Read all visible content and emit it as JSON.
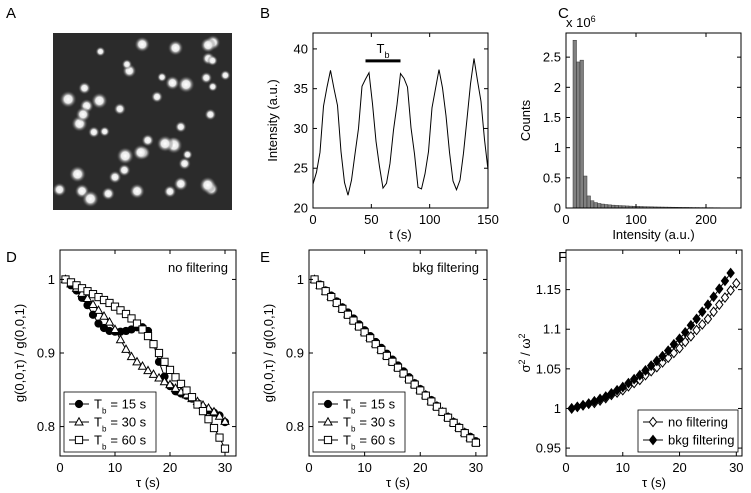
{
  "chart_data": [
    {
      "type": "image",
      "panel": "A"
    },
    {
      "type": "line",
      "panel": "B",
      "xlabel": "t (s)",
      "ylabel": "Intensity (a.u.)",
      "x": [
        0,
        3,
        6,
        9,
        12,
        15,
        18,
        21,
        24,
        27,
        30,
        33,
        36,
        39,
        42,
        45,
        48,
        51,
        54,
        57,
        60,
        63,
        66,
        69,
        72,
        75,
        78,
        81,
        84,
        87,
        90,
        93,
        96,
        99,
        102,
        105,
        108,
        111,
        114,
        117,
        120,
        123,
        126,
        129,
        132,
        135,
        138,
        141,
        144,
        147,
        150
      ],
      "series": [
        {
          "color": "#000000",
          "values": [
            23.0,
            24.5,
            27.0,
            32.8,
            35.2,
            37.3,
            35.0,
            32.9,
            27.1,
            23.2,
            21.6,
            23.5,
            26.8,
            30.0,
            35.3,
            36.2,
            37.0,
            33.1,
            28.4,
            25.2,
            22.5,
            23.1,
            25.6,
            29.8,
            33.0,
            36.9,
            36.3,
            35.2,
            30.1,
            26.8,
            22.6,
            22.4,
            24.3,
            27.1,
            32.6,
            35.0,
            37.4,
            35.1,
            31.6,
            27.0,
            23.4,
            22.3,
            23.5,
            26.9,
            31.2,
            35.6,
            38.8,
            36.0,
            33.4,
            28.6,
            24.8
          ]
        }
      ],
      "annotations": [
        {
          "text": "T",
          "subscript": "b",
          "span": [
            45,
            75
          ],
          "y": 38.5
        }
      ],
      "xlim": [
        0,
        150
      ],
      "xticks": [
        0,
        50,
        100,
        150
      ],
      "ylim": [
        20,
        42
      ],
      "yticks": [
        20,
        25,
        30,
        35,
        40
      ],
      "grid": false
    },
    {
      "type": "histogram",
      "panel": "C",
      "xlabel": "Intensity (a.u.)",
      "ylabel": "Counts",
      "y_multiplier": {
        "text": "x 10",
        "sup": "6"
      },
      "color": "#808080",
      "bins": [
        0,
        5,
        10,
        15,
        20,
        25,
        30,
        35,
        40,
        45,
        50,
        55,
        60,
        65,
        70,
        75,
        80,
        85,
        90,
        95,
        100,
        105,
        110,
        115,
        120,
        125,
        130,
        135,
        140,
        145,
        150,
        155,
        160,
        165,
        170,
        175,
        180,
        185,
        190,
        195,
        200,
        205,
        210,
        215,
        220,
        225,
        230,
        235,
        240,
        245,
        250
      ],
      "values": [
        0,
        0,
        2.78,
        2.42,
        2.45,
        0.53,
        0.2,
        0.12,
        0.09,
        0.075,
        0.065,
        0.058,
        0.052,
        0.047,
        0.043,
        0.04,
        0.037,
        0.034,
        0.031,
        0.029,
        0.027,
        0.025,
        0.023,
        0.021,
        0.02,
        0.018,
        0.017,
        0.016,
        0.015,
        0.014,
        0.013,
        0.012,
        0.011,
        0.01,
        0.01,
        0.009,
        0.008,
        0.008,
        0.007,
        0.007,
        0.006,
        0.006,
        0.005,
        0.005,
        0.004,
        0.003,
        0.002,
        0.001,
        0,
        0
      ],
      "xlim": [
        0,
        250
      ],
      "xticks": [
        0,
        100,
        200
      ],
      "ylim": [
        0,
        2.9
      ],
      "yticks": [
        0,
        0.5,
        1,
        1.5,
        2,
        2.5
      ],
      "grid": false
    },
    {
      "type": "line",
      "panel": "D",
      "xlabel": "τ (s)",
      "ylabel": "g(0,0,τ) / g(0,0,1)",
      "annotation": "no filtering",
      "legend": "lower left",
      "x": [
        1,
        2,
        3,
        4,
        5,
        6,
        7,
        8,
        9,
        10,
        11,
        12,
        13,
        14,
        15,
        16,
        17,
        18,
        19,
        20,
        21,
        22,
        23,
        24,
        25,
        26,
        27,
        28,
        29,
        30
      ],
      "series": [
        {
          "name_symbol": "T",
          "name_subscript": "b",
          "name": "= 15 s",
          "color": "#000000",
          "marker": "circle",
          "filled": true,
          "values": [
            1.0,
            0.992,
            0.985,
            0.975,
            0.965,
            0.952,
            0.94,
            0.934,
            0.93,
            0.929,
            0.929,
            0.93,
            0.932,
            0.935,
            0.935,
            0.93,
            0.912,
            0.888,
            0.868,
            0.855,
            0.848,
            0.845,
            0.842,
            0.838,
            0.832,
            0.826,
            0.822,
            0.819,
            0.815,
            0.806
          ]
        },
        {
          "name_symbol": "T",
          "name_subscript": "b",
          "name": "= 30 s",
          "color": "#000000",
          "marker": "triangle",
          "filled": false,
          "values": [
            1.0,
            0.994,
            0.988,
            0.981,
            0.974,
            0.966,
            0.958,
            0.95,
            0.942,
            0.932,
            0.918,
            0.905,
            0.895,
            0.888,
            0.882,
            0.876,
            0.871,
            0.866,
            0.861,
            0.857,
            0.852,
            0.847,
            0.843,
            0.838,
            0.834,
            0.829,
            0.825,
            0.82,
            0.814,
            0.807
          ]
        },
        {
          "name_symbol": "T",
          "name_subscript": "b",
          "name": "= 60 s",
          "color": "#000000",
          "marker": "square",
          "filled": false,
          "values": [
            1.0,
            0.996,
            0.992,
            0.988,
            0.984,
            0.98,
            0.976,
            0.972,
            0.968,
            0.963,
            0.958,
            0.953,
            0.947,
            0.94,
            0.932,
            0.923,
            0.912,
            0.9,
            0.888,
            0.877,
            0.867,
            0.858,
            0.849,
            0.84,
            0.83,
            0.821,
            0.81,
            0.798,
            0.785,
            0.77
          ]
        }
      ],
      "xlim": [
        0,
        32
      ],
      "xticks": [
        0,
        10,
        20,
        30
      ],
      "ylim": [
        0.76,
        1.04
      ],
      "yticks": [
        0.8,
        0.9,
        1
      ],
      "grid": false
    },
    {
      "type": "line",
      "panel": "E",
      "xlabel": "τ (s)",
      "ylabel": "g(0,0,τ) / g(0,0,1)",
      "annotation": "bkg filtering",
      "legend": "lower left",
      "x": [
        1,
        2,
        3,
        4,
        5,
        6,
        7,
        8,
        9,
        10,
        11,
        12,
        13,
        14,
        15,
        16,
        17,
        18,
        19,
        20,
        21,
        22,
        23,
        24,
        25,
        26,
        27,
        28,
        29,
        30
      ],
      "series": [
        {
          "name_symbol": "T",
          "name_subscript": "b",
          "name": "= 15 s",
          "color": "#000000",
          "marker": "circle",
          "filled": true,
          "values": [
            1.0,
            0.993,
            0.985,
            0.978,
            0.97,
            0.962,
            0.955,
            0.947,
            0.939,
            0.931,
            0.923,
            0.915,
            0.907,
            0.899,
            0.891,
            0.883,
            0.875,
            0.867,
            0.859,
            0.851,
            0.843,
            0.836,
            0.828,
            0.82,
            0.813,
            0.806,
            0.799,
            0.792,
            0.786,
            0.78
          ]
        },
        {
          "name_symbol": "T",
          "name_subscript": "b",
          "name": "= 30 s",
          "color": "#000000",
          "marker": "triangle",
          "filled": false,
          "values": [
            1.0,
            0.992,
            0.984,
            0.977,
            0.969,
            0.961,
            0.953,
            0.945,
            0.937,
            0.929,
            0.921,
            0.913,
            0.905,
            0.897,
            0.889,
            0.881,
            0.873,
            0.866,
            0.858,
            0.85,
            0.843,
            0.835,
            0.828,
            0.82,
            0.813,
            0.806,
            0.799,
            0.792,
            0.785,
            0.779
          ]
        },
        {
          "name_symbol": "T",
          "name_subscript": "b",
          "name": "= 60 s",
          "color": "#000000",
          "marker": "square",
          "filled": false,
          "values": [
            1.0,
            0.992,
            0.984,
            0.976,
            0.968,
            0.96,
            0.952,
            0.944,
            0.936,
            0.928,
            0.92,
            0.912,
            0.904,
            0.896,
            0.888,
            0.88,
            0.872,
            0.864,
            0.857,
            0.849,
            0.842,
            0.834,
            0.827,
            0.82,
            0.812,
            0.805,
            0.798,
            0.791,
            0.784,
            0.778
          ]
        }
      ],
      "xlim": [
        0,
        32
      ],
      "xticks": [
        0,
        10,
        20,
        30
      ],
      "ylim": [
        0.76,
        1.04
      ],
      "yticks": [
        0.8,
        0.9,
        1
      ],
      "grid": false
    },
    {
      "type": "line",
      "panel": "F",
      "xlabel": "τ (s)",
      "ylabel_parts": [
        {
          "text": "σ"
        },
        {
          "text": "2",
          "sup": true
        },
        {
          "text": " / ω"
        },
        {
          "text": "2",
          "sup": true
        }
      ],
      "legend": "lower right",
      "x": [
        1,
        2,
        3,
        4,
        5,
        6,
        7,
        8,
        9,
        10,
        11,
        12,
        13,
        14,
        15,
        16,
        17,
        18,
        19,
        20,
        21,
        22,
        23,
        24,
        25,
        26,
        27,
        28,
        29,
        30
      ],
      "series": [
        {
          "name": "no filtering",
          "color": "#000000",
          "marker": "diamond",
          "filled": false,
          "values": [
            1.0,
            1.002,
            1.004,
            1.006,
            1.007,
            1.01,
            1.013,
            1.017,
            1.02,
            1.023,
            1.028,
            1.032,
            1.036,
            1.042,
            1.047,
            1.052,
            1.058,
            1.064,
            1.07,
            1.076,
            1.084,
            1.091,
            1.099,
            1.106,
            1.113,
            1.122,
            1.131,
            1.14,
            1.149,
            1.158
          ]
        },
        {
          "name": "bkg filtering",
          "color": "#000000",
          "marker": "diamond",
          "filled": true,
          "values": [
            1.0,
            1.002,
            1.004,
            1.006,
            1.009,
            1.012,
            1.015,
            1.019,
            1.023,
            1.027,
            1.032,
            1.037,
            1.042,
            1.048,
            1.054,
            1.06,
            1.066,
            1.073,
            1.081,
            1.088,
            1.096,
            1.105,
            1.113,
            1.122,
            1.131,
            1.141,
            1.151,
            1.161,
            1.171,
            null
          ]
        }
      ],
      "xlim": [
        0,
        31
      ],
      "xticks": [
        0,
        10,
        20,
        30
      ],
      "ylim": [
        0.94,
        1.2
      ],
      "yticks": [
        0.95,
        1,
        1.05,
        1.1,
        1.15
      ],
      "grid": false
    }
  ]
}
